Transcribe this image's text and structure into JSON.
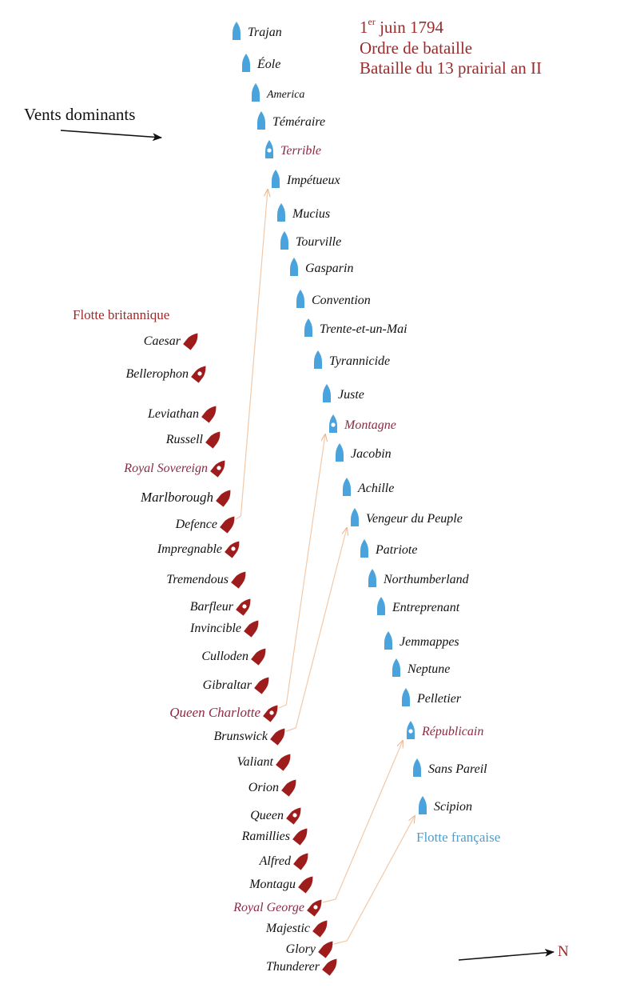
{
  "header": {
    "line1_prefix": "1",
    "line1_sup": "er",
    "line1_rest": " juin 1794",
    "line2": "Ordre de bataille",
    "line3": "Bataille du 13 prairial an II"
  },
  "wind_label": "Vents dominants",
  "north_label": "N",
  "british": {
    "label": "Flotte britannique",
    "ships": [
      {
        "name": "Caesar",
        "flag": false
      },
      {
        "name": "Bellerophon",
        "flag": false,
        "marked": true
      },
      {
        "name": "Leviathan",
        "flag": false
      },
      {
        "name": "Russell",
        "flag": false
      },
      {
        "name": "Royal Sovereign",
        "flag": true,
        "marked": true
      },
      {
        "name": "Marlborough",
        "flag": false
      },
      {
        "name": "Defence",
        "flag": false
      },
      {
        "name": "Impregnable",
        "flag": false,
        "marked": true
      },
      {
        "name": "Tremendous",
        "flag": false
      },
      {
        "name": "Barfleur",
        "flag": false,
        "marked": true
      },
      {
        "name": "Invincible",
        "flag": false
      },
      {
        "name": "Culloden",
        "flag": false
      },
      {
        "name": "Gibraltar",
        "flag": false
      },
      {
        "name": "Queen Charlotte",
        "flag": true,
        "marked": true
      },
      {
        "name": "Brunswick",
        "flag": false
      },
      {
        "name": "Valiant",
        "flag": false
      },
      {
        "name": "Orion",
        "flag": false
      },
      {
        "name": "Queen",
        "flag": false,
        "marked": true
      },
      {
        "name": "Ramillies",
        "flag": false
      },
      {
        "name": "Alfred",
        "flag": false
      },
      {
        "name": "Montagu",
        "flag": false
      },
      {
        "name": "Royal George",
        "flag": true,
        "marked": true
      },
      {
        "name": "Majestic",
        "flag": false
      },
      {
        "name": "Glory",
        "flag": false
      },
      {
        "name": "Thunderer",
        "flag": false
      }
    ]
  },
  "french": {
    "label": "Flotte française",
    "ships": [
      {
        "name": "Trajan",
        "flag": false
      },
      {
        "name": "Éole",
        "flag": false
      },
      {
        "name": "America",
        "flag": false
      },
      {
        "name": "Téméraire",
        "flag": false
      },
      {
        "name": "Terrible",
        "flag": true,
        "marked": true
      },
      {
        "name": "Impétueux",
        "flag": false
      },
      {
        "name": "Mucius",
        "flag": false
      },
      {
        "name": "Tourville",
        "flag": false
      },
      {
        "name": "Gasparin",
        "flag": false
      },
      {
        "name": "Convention",
        "flag": false
      },
      {
        "name": "Trente-et-un-Mai",
        "flag": false
      },
      {
        "name": "Tyrannicide",
        "flag": false
      },
      {
        "name": "Juste",
        "flag": false
      },
      {
        "name": "Montagne",
        "flag": true,
        "marked": true
      },
      {
        "name": "Jacobin",
        "flag": false
      },
      {
        "name": "Achille",
        "flag": false
      },
      {
        "name": "Vengeur du Peuple",
        "flag": false
      },
      {
        "name": "Patriote",
        "flag": false
      },
      {
        "name": "Northumberland",
        "flag": false
      },
      {
        "name": "Entreprenant",
        "flag": false
      },
      {
        "name": "Jemmappes",
        "flag": false
      },
      {
        "name": "Neptune",
        "flag": false
      },
      {
        "name": "Pelletier",
        "flag": false
      },
      {
        "name": "Républicain",
        "flag": true,
        "marked": true
      },
      {
        "name": "Sans Pareil",
        "flag": false
      },
      {
        "name": "Scipion",
        "flag": false
      }
    ]
  },
  "breakthroughs": [
    {
      "from": "Defence",
      "to": "Impétueux"
    },
    {
      "from": "Queen Charlotte",
      "to": "Montagne"
    },
    {
      "from": "Brunswick",
      "to": "Vengeur du Peuple"
    },
    {
      "from": "Royal George",
      "to": "Républicain"
    },
    {
      "from": "Glory",
      "to": "Scipion"
    }
  ],
  "colors": {
    "british_ship": "#9e1c1c",
    "french_ship": "#4aa3dc",
    "flag_name": "#8b2a45",
    "normal_name": "#111111",
    "title": "#9b2b2b",
    "british_label": "#9b2b2b",
    "french_label": "#4a9fd0",
    "track": "#f2c9a8"
  }
}
